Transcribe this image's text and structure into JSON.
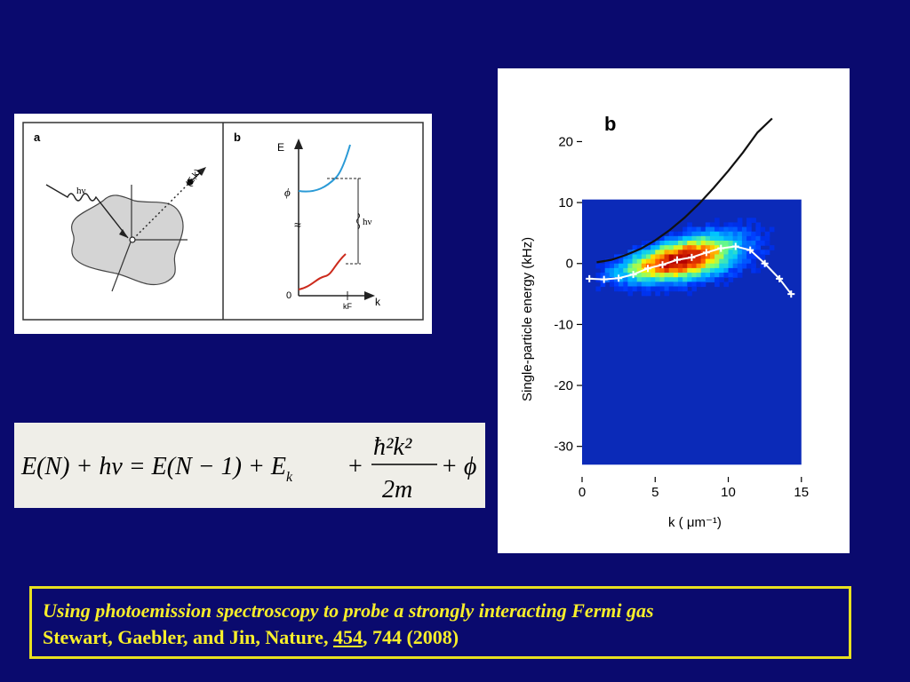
{
  "schematic": {
    "panel_a_label": "a",
    "panel_b_label": "b",
    "photon_label": "hν",
    "electron_label": "(E,k)",
    "energy_axis_label": "E",
    "phi_label": "ϕ",
    "zero_label": "0",
    "kf_label": "kF",
    "k_axis_label": "k",
    "hv_gap_label": "hν"
  },
  "equation": {
    "lhs": "E(N) + hν = E(N − 1) + E",
    "sub_k": "k",
    "plus": "+",
    "num": "ħ²k²",
    "den": "2m",
    "tail": "+ ϕ"
  },
  "plot": {
    "panel_label": "b",
    "ylabel": "Single-particle energy (kHz)",
    "xlabel": "k ( μm⁻¹)",
    "yticks": [
      "20",
      "10",
      "0",
      "-10",
      "-20",
      "-30"
    ],
    "xticks": [
      "0",
      "5",
      "10",
      "15"
    ]
  },
  "chart_data": {
    "type": "heatmap",
    "title": "",
    "xlabel": "k ( μm⁻¹)",
    "ylabel": "Single-particle energy (kHz)",
    "xlim": [
      0,
      15.5
    ],
    "ylim": [
      -35,
      24
    ],
    "series": [
      {
        "name": "",
        "kind": "parabola",
        "x": [
          1,
          2,
          3,
          4,
          5,
          6,
          7,
          8,
          9,
          10,
          11,
          12,
          13
        ],
        "y": [
          0.2,
          0.6,
          1.4,
          2.4,
          3.8,
          5.5,
          7.5,
          9.8,
          12.4,
          15.2,
          18.2,
          21.5,
          23.8
        ]
      },
      {
        "name": "",
        "kind": "dispersion",
        "x": [
          0.5,
          1.5,
          2.5,
          3.5,
          4.5,
          5.5,
          6.5,
          7.5,
          8.5,
          9.5,
          10.5,
          11.5,
          12.5,
          13.5,
          14.3
        ],
        "y": [
          -2.5,
          -2.6,
          -2.4,
          -1.8,
          -0.8,
          -0.2,
          0.6,
          1.0,
          1.8,
          2.5,
          2.8,
          2.2,
          0,
          -2.5,
          -5.0
        ]
      }
    ]
  },
  "caption": {
    "title": "Using photoemission spectroscopy to probe  a strongly interacting Fermi gas",
    "authors": "Stewart, Gaebler, and Jin, Nature, ",
    "volume": "454",
    "pages": ",  744 (2008)"
  }
}
